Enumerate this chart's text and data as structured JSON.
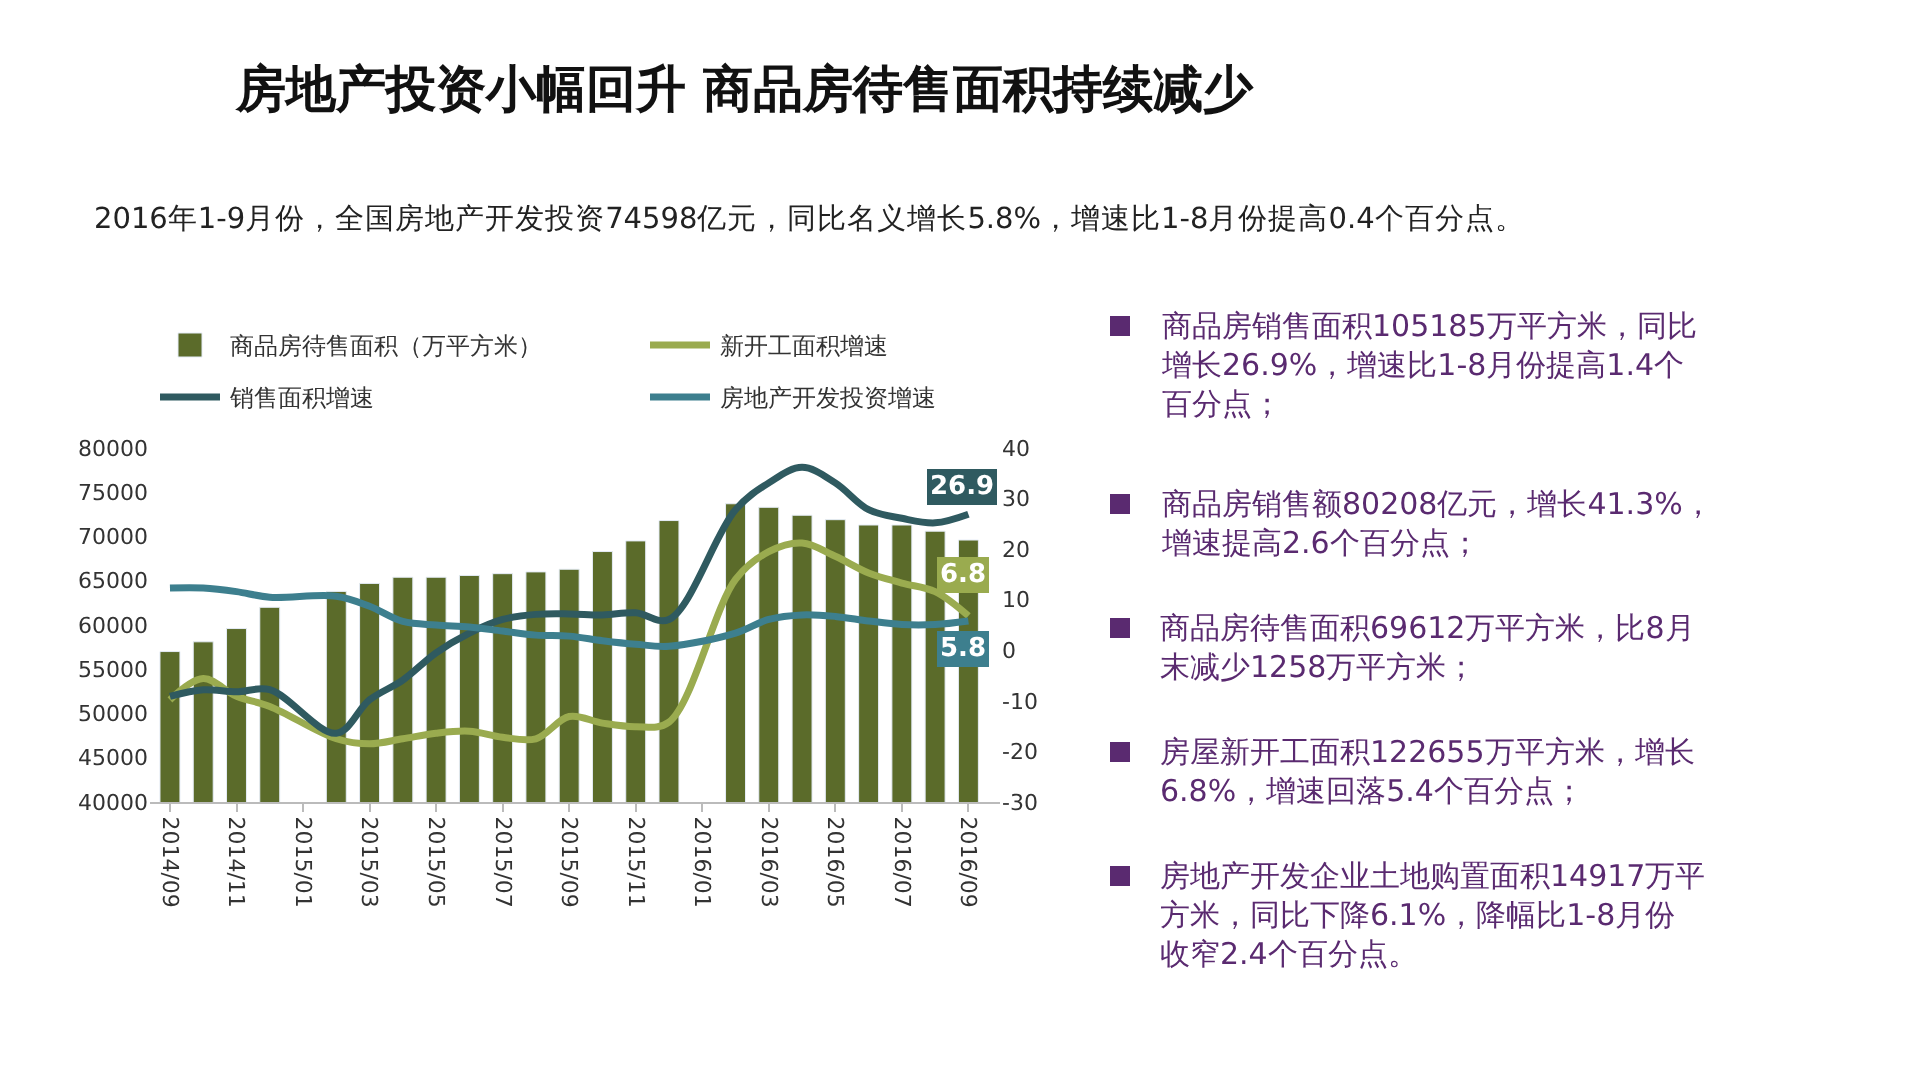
{
  "chart_data": {
    "type": "bar",
    "title": "房地产投资小幅回升 商品房待售面积持续减少",
    "subtitle": "2016年1-9月份，全国房地产开发投资74598亿元，同比名义增长5.8%，增速比1-8月份提高0.4个百分点。",
    "categories": [
      "2014/09",
      null,
      "2014/11",
      null,
      "2015/01",
      null,
      "2015/03",
      null,
      "2015/05",
      null,
      "2015/07",
      null,
      "2015/09",
      null,
      "2015/11",
      null,
      "2016/01",
      null,
      "2016/03",
      null,
      "2016/05",
      null,
      "2016/07",
      null,
      "2016/09"
    ],
    "series": [
      {
        "name": "商品房待售面积（万平方米）",
        "color": "#5b6b2a",
        "values": [
          57000,
          58100,
          59600,
          62000,
          null,
          63800,
          64700,
          65400,
          65400,
          65600,
          65800,
          66000,
          66300,
          68300,
          69500,
          71800,
          null,
          73700,
          73300,
          72400,
          71900,
          71300,
          71300,
          70600,
          69600
        ]
      },
      {
        "name": "新开工面积增速",
        "type": "line",
        "axis": "y2",
        "color": "#9aab4f",
        "values": [
          -9.8,
          -5.6,
          -9.1,
          -11.1,
          null,
          -17.5,
          -18.5,
          -17.5,
          -16.4,
          -16.0,
          -17.2,
          -17.5,
          -13.1,
          -14.4,
          -15.1,
          -14.2,
          null,
          14.0,
          19.5,
          21.2,
          18.6,
          15.3,
          13.3,
          11.6,
          6.8
        ],
        "value_labels": [
          null,
          null,
          null,
          null,
          null,
          null,
          null,
          null,
          null,
          null,
          null,
          null,
          null,
          null,
          null,
          null,
          null,
          null,
          null,
          null,
          null,
          null,
          null,
          null,
          "6.8"
        ]
      },
      {
        "name": "销售面积增速",
        "type": "line",
        "axis": "y2",
        "color": "#2f5a60",
        "values": [
          -9.1,
          -7.8,
          -8.2,
          -7.8,
          null,
          -16.4,
          -9.8,
          -5.9,
          -0.5,
          3.4,
          6.1,
          7.1,
          7.2,
          7.0,
          7.4,
          6.1,
          null,
          27.8,
          33.1,
          36.2,
          33.1,
          27.8,
          26.1,
          25.2,
          26.9
        ],
        "value_labels": [
          null,
          null,
          null,
          null,
          null,
          null,
          null,
          null,
          null,
          null,
          null,
          null,
          null,
          null,
          null,
          null,
          null,
          null,
          null,
          null,
          null,
          null,
          null,
          null,
          "26.9"
        ]
      },
      {
        "name": "房地产开发投资增速",
        "type": "line",
        "axis": "y2",
        "color": "#3d7f8e",
        "values": [
          12.3,
          12.3,
          11.6,
          10.5,
          null,
          10.7,
          8.7,
          5.7,
          5.0,
          4.6,
          3.8,
          3.0,
          2.8,
          1.9,
          1.2,
          0.8,
          null,
          3.4,
          6.1,
          7.0,
          6.7,
          5.8,
          5.1,
          5.1,
          5.8
        ],
        "value_labels": [
          null,
          null,
          null,
          null,
          null,
          null,
          null,
          null,
          null,
          null,
          null,
          null,
          null,
          null,
          null,
          null,
          null,
          null,
          null,
          null,
          null,
          null,
          null,
          null,
          "5.8"
        ]
      }
    ],
    "ylim": [
      40000,
      80000
    ],
    "yticks": [
      40000,
      45000,
      50000,
      55000,
      60000,
      65000,
      70000,
      75000,
      80000
    ],
    "y2lim": [
      -30,
      40
    ],
    "y2ticks": [
      -30,
      -20,
      -10,
      0,
      10,
      20,
      30,
      40
    ],
    "legend": "top",
    "marker": "none",
    "line_style": "solid",
    "annotations": [
      "商品房销售面积105185万平方米，同比增长26.9%，增速比1-8月份提高1.4个百分点；",
      "商品房销售额80208亿元，增长41.3%，增速提高2.6个百分点；",
      "商品房待售面积69612万平方米，比8月末减少1258万平方米；",
      "房屋新开工面积122655万平方米，增长6.8%，增速回落5.4个百分点；",
      "房地产开发企业土地购置面积14917万平方米，同比下降6.1%，降幅比1-8月份收窄2.4个百分点。"
    ]
  }
}
